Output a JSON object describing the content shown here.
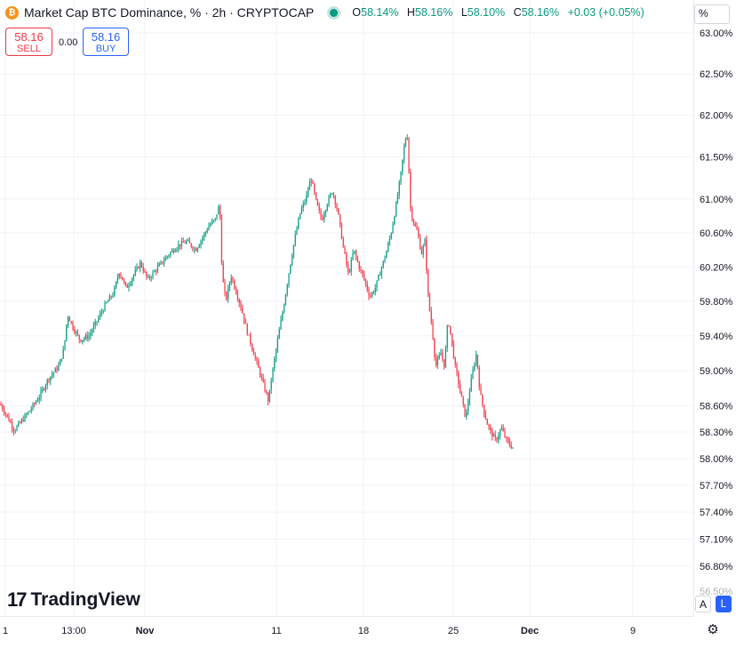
{
  "header": {
    "coin_icon": "bitcoin-icon",
    "title": "Market Cap BTC Dominance, % · 2h · CRYPTOCAP",
    "ohlc": {
      "o_label": "O",
      "o_value": "58.14%",
      "h_label": "H",
      "h_value": "58.16%",
      "l_label": "L",
      "l_value": "58.10%",
      "c_label": "C",
      "c_value": "58.16%",
      "change": "+0.03 (+0.05%)"
    }
  },
  "trade": {
    "sell_price": "58.16",
    "sell_label": "SELL",
    "spread": "0.00",
    "buy_price": "58.16",
    "buy_label": "BUY"
  },
  "scale_button": "%",
  "axis_buttons": {
    "auto": "A",
    "log": "L"
  },
  "branding": {
    "logo_text": "TradingView",
    "logo_icon": "tradingview-icon"
  },
  "colors": {
    "up": "#089981",
    "down": "#f23645",
    "grid": "#f0f3fa"
  },
  "chart_data": {
    "type": "candlestick",
    "symbol": "CRYPTOCAP BTC Dominance",
    "interval": "2h",
    "y_unit": "%",
    "y_ticks": [
      "63.00%",
      "62.50%",
      "62.00%",
      "61.50%",
      "61.00%",
      "60.60%",
      "60.20%",
      "59.80%",
      "59.40%",
      "59.00%",
      "58.60%",
      "58.30%",
      "58.00%",
      "57.70%",
      "57.40%",
      "57.10%",
      "56.80%"
    ],
    "x_ticks": [
      "1",
      "13:00",
      "Nov",
      "11",
      "18",
      "25",
      "Dec",
      "9"
    ],
    "last_value": 58.16,
    "path_points": [
      {
        "x": 0,
        "y": 58.62
      },
      {
        "x": 8,
        "y": 58.48
      },
      {
        "x": 16,
        "y": 58.32
      },
      {
        "x": 24,
        "y": 58.42
      },
      {
        "x": 34,
        "y": 58.55
      },
      {
        "x": 44,
        "y": 58.7
      },
      {
        "x": 54,
        "y": 58.9
      },
      {
        "x": 66,
        "y": 59.05
      },
      {
        "x": 72,
        "y": 59.25
      },
      {
        "x": 76,
        "y": 59.65
      },
      {
        "x": 82,
        "y": 59.5
      },
      {
        "x": 90,
        "y": 59.35
      },
      {
        "x": 100,
        "y": 59.4
      },
      {
        "x": 108,
        "y": 59.55
      },
      {
        "x": 118,
        "y": 59.75
      },
      {
        "x": 128,
        "y": 59.9
      },
      {
        "x": 134,
        "y": 60.15
      },
      {
        "x": 142,
        "y": 59.95
      },
      {
        "x": 150,
        "y": 60.1
      },
      {
        "x": 158,
        "y": 60.25
      },
      {
        "x": 166,
        "y": 60.05
      },
      {
        "x": 174,
        "y": 60.15
      },
      {
        "x": 182,
        "y": 60.25
      },
      {
        "x": 190,
        "y": 60.35
      },
      {
        "x": 200,
        "y": 60.45
      },
      {
        "x": 210,
        "y": 60.5
      },
      {
        "x": 220,
        "y": 60.4
      },
      {
        "x": 228,
        "y": 60.55
      },
      {
        "x": 236,
        "y": 60.7
      },
      {
        "x": 242,
        "y": 60.75
      },
      {
        "x": 247,
        "y": 60.95
      },
      {
        "x": 250,
        "y": 60.1
      },
      {
        "x": 254,
        "y": 59.8
      },
      {
        "x": 260,
        "y": 60.1
      },
      {
        "x": 266,
        "y": 59.9
      },
      {
        "x": 272,
        "y": 59.7
      },
      {
        "x": 278,
        "y": 59.45
      },
      {
        "x": 284,
        "y": 59.25
      },
      {
        "x": 290,
        "y": 59.05
      },
      {
        "x": 296,
        "y": 58.85
      },
      {
        "x": 302,
        "y": 58.65
      },
      {
        "x": 306,
        "y": 58.95
      },
      {
        "x": 310,
        "y": 59.2
      },
      {
        "x": 314,
        "y": 59.45
      },
      {
        "x": 320,
        "y": 59.8
      },
      {
        "x": 326,
        "y": 60.2
      },
      {
        "x": 332,
        "y": 60.55
      },
      {
        "x": 338,
        "y": 60.85
      },
      {
        "x": 344,
        "y": 61.0
      },
      {
        "x": 350,
        "y": 61.25
      },
      {
        "x": 356,
        "y": 60.95
      },
      {
        "x": 362,
        "y": 60.75
      },
      {
        "x": 368,
        "y": 60.95
      },
      {
        "x": 374,
        "y": 61.1
      },
      {
        "x": 380,
        "y": 60.85
      },
      {
        "x": 386,
        "y": 60.45
      },
      {
        "x": 392,
        "y": 60.1
      },
      {
        "x": 398,
        "y": 60.4
      },
      {
        "x": 404,
        "y": 60.2
      },
      {
        "x": 410,
        "y": 60.05
      },
      {
        "x": 416,
        "y": 59.85
      },
      {
        "x": 422,
        "y": 59.95
      },
      {
        "x": 428,
        "y": 60.15
      },
      {
        "x": 434,
        "y": 60.35
      },
      {
        "x": 440,
        "y": 60.6
      },
      {
        "x": 446,
        "y": 60.95
      },
      {
        "x": 451,
        "y": 61.3
      },
      {
        "x": 455,
        "y": 61.65
      },
      {
        "x": 458,
        "y": 61.8
      },
      {
        "x": 462,
        "y": 60.85
      },
      {
        "x": 466,
        "y": 60.7
      },
      {
        "x": 470,
        "y": 60.6
      },
      {
        "x": 474,
        "y": 60.35
      },
      {
        "x": 478,
        "y": 60.5
      },
      {
        "x": 482,
        "y": 59.8
      },
      {
        "x": 486,
        "y": 59.5
      },
      {
        "x": 490,
        "y": 59.05
      },
      {
        "x": 496,
        "y": 59.2
      },
      {
        "x": 500,
        "y": 59.05
      },
      {
        "x": 504,
        "y": 59.6
      },
      {
        "x": 508,
        "y": 59.35
      },
      {
        "x": 512,
        "y": 59.05
      },
      {
        "x": 516,
        "y": 58.85
      },
      {
        "x": 520,
        "y": 58.65
      },
      {
        "x": 524,
        "y": 58.45
      },
      {
        "x": 528,
        "y": 58.75
      },
      {
        "x": 532,
        "y": 59.0
      },
      {
        "x": 536,
        "y": 59.2
      },
      {
        "x": 540,
        "y": 58.75
      },
      {
        "x": 544,
        "y": 58.55
      },
      {
        "x": 548,
        "y": 58.4
      },
      {
        "x": 552,
        "y": 58.3
      },
      {
        "x": 558,
        "y": 58.2
      },
      {
        "x": 564,
        "y": 58.35
      },
      {
        "x": 570,
        "y": 58.2
      },
      {
        "x": 574,
        "y": 58.15
      },
      {
        "x": 578,
        "y": 58.12
      }
    ]
  }
}
